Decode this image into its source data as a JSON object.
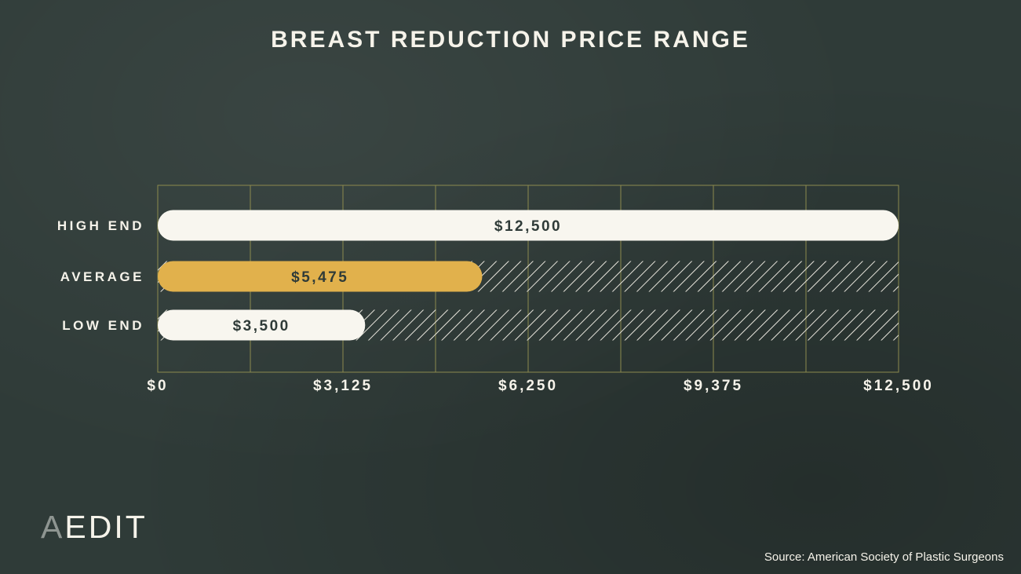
{
  "chart_data": {
    "type": "bar",
    "orientation": "horizontal",
    "title": "BREAST REDUCTION PRICE RANGE",
    "categories": [
      "HIGH END",
      "AVERAGE",
      "LOW END"
    ],
    "values": [
      12500,
      5475,
      3500
    ],
    "value_labels": [
      "$12,500",
      "$5,475",
      "$3,500"
    ],
    "xlim": [
      0,
      12500
    ],
    "xticks": [
      0,
      3125,
      6250,
      9375,
      12500
    ],
    "xtick_labels": [
      "$0",
      "$3,125",
      "$6,250",
      "$9,375",
      "$12,500"
    ],
    "grid": true,
    "remainder_hatched": true
  },
  "colors": {
    "background": "#2f3b38",
    "bar_default": "#f8f6ef",
    "bar_highlight": "#e1b14c",
    "grid": "#8c8a4e",
    "text": "#f6f3ea",
    "bar_text": "#2f3b38",
    "logo_a": "#8e9591"
  },
  "branding": {
    "logo_first": "A",
    "logo_rest": "EDIT"
  },
  "source": "Source: American Society of Plastic Surgeons"
}
